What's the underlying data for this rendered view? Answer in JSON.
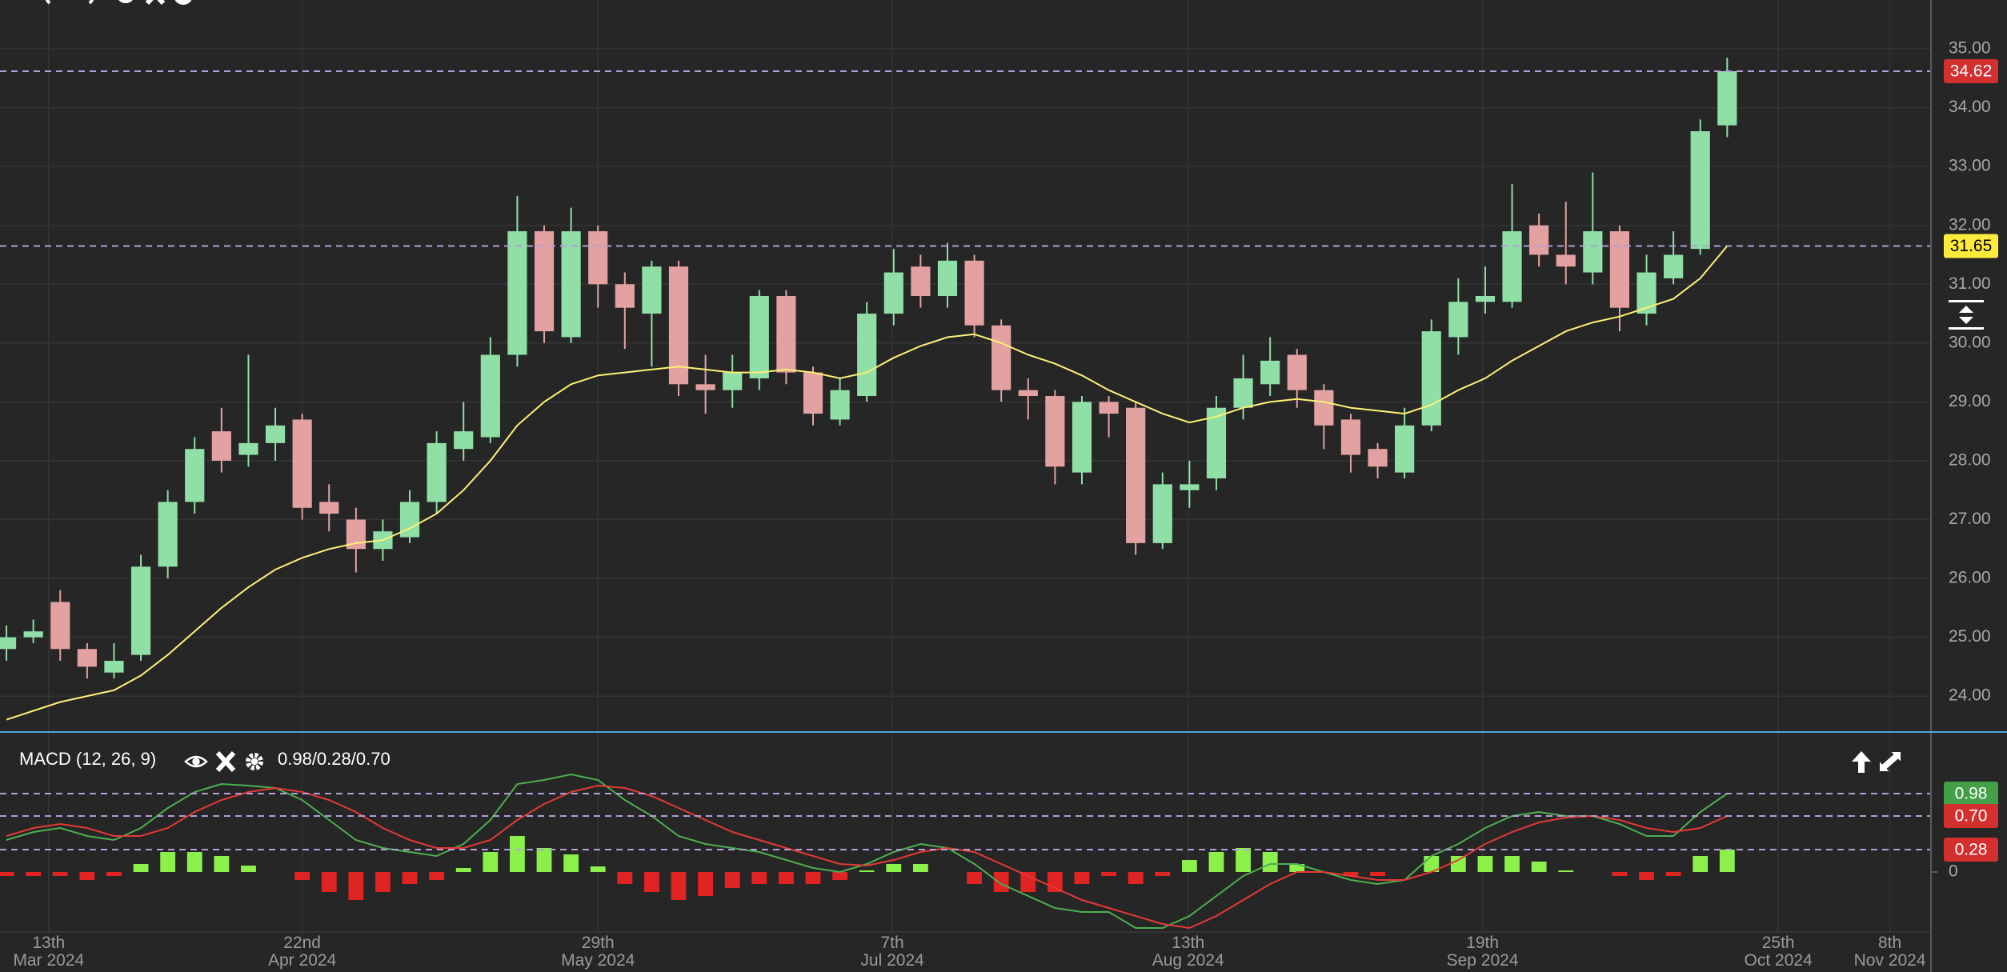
{
  "chart_data": [
    {
      "type": "candlestick",
      "xlim": [
        -0.24,
        71.58
      ],
      "xticks": [
        {
          "value": 1.57,
          "label": "13th\nMar 2024"
        },
        {
          "value": 11.0,
          "label": "22nd\nApr 2024"
        },
        {
          "value": 22.0,
          "label": "29th\nMay 2024"
        },
        {
          "value": 32.95,
          "label": "7th\nJul 2024"
        },
        {
          "value": 43.95,
          "label": "13th\nAug 2024"
        },
        {
          "value": 54.9,
          "label": "19th\nSep 2024"
        },
        {
          "value": 65.9,
          "label": "25th\nOct 2024"
        },
        {
          "value": 70.05,
          "label": "8th\nNov 2024"
        }
      ],
      "ylim": [
        23.39,
        35.83
      ],
      "yticks": [
        {
          "value": 24,
          "label": "24.00"
        },
        {
          "value": 25,
          "label": "25.00"
        },
        {
          "value": 26,
          "label": "26.00"
        },
        {
          "value": 27,
          "label": "27.00"
        },
        {
          "value": 28,
          "label": "28.00"
        },
        {
          "value": 29,
          "label": "29.00"
        },
        {
          "value": 30,
          "label": "30.00"
        },
        {
          "value": 31,
          "label": "31.00"
        },
        {
          "value": 32,
          "label": "32.00"
        },
        {
          "value": 33,
          "label": "33.00"
        },
        {
          "value": 34,
          "label": "34.00"
        },
        {
          "value": 35,
          "label": "35.00"
        }
      ],
      "grid": true,
      "up_color": "#8fdfa6",
      "down_color": "#e3a1a1",
      "last_color": "#d32f2f",
      "open": [
        24.8,
        25.0,
        25.6,
        24.8,
        24.4,
        24.7,
        26.2,
        27.3,
        28.5,
        28.1,
        28.3,
        28.7,
        27.3,
        27.0,
        26.5,
        26.7,
        27.3,
        28.2,
        28.4,
        29.8,
        31.9,
        30.1,
        31.9,
        31.0,
        30.5,
        31.3,
        29.3,
        29.2,
        29.4,
        30.8,
        29.5,
        28.7,
        29.1,
        30.5,
        31.3,
        30.8,
        31.4,
        30.3,
        29.2,
        29.1,
        27.8,
        29.0,
        28.9,
        26.6,
        27.5,
        27.7,
        28.9,
        29.3,
        29.8,
        29.2,
        28.7,
        28.2,
        27.8,
        28.6,
        30.1,
        30.7,
        30.7,
        32.0,
        31.5,
        31.2,
        31.9,
        30.5,
        31.1,
        31.6,
        33.7
      ],
      "high": [
        25.2,
        25.3,
        25.8,
        24.9,
        24.9,
        26.4,
        27.5,
        28.4,
        28.9,
        29.8,
        28.9,
        28.8,
        27.6,
        27.2,
        27.0,
        27.5,
        28.5,
        29.0,
        30.1,
        32.5,
        32.0,
        32.3,
        32.0,
        31.2,
        31.4,
        31.4,
        29.8,
        29.8,
        30.9,
        30.9,
        29.6,
        29.4,
        30.7,
        31.6,
        31.5,
        31.7,
        31.5,
        30.4,
        29.4,
        29.2,
        29.1,
        29.1,
        29.0,
        27.8,
        28.0,
        29.1,
        29.8,
        30.1,
        29.9,
        29.3,
        28.8,
        28.3,
        28.9,
        30.4,
        31.1,
        31.3,
        32.7,
        32.2,
        32.4,
        32.9,
        32.0,
        31.5,
        31.9,
        33.8,
        34.85
      ],
      "low": [
        24.6,
        24.9,
        24.6,
        24.3,
        24.3,
        24.6,
        26.0,
        27.1,
        27.8,
        27.9,
        28.0,
        27.0,
        26.8,
        26.1,
        26.3,
        26.6,
        27.1,
        28.0,
        28.3,
        29.6,
        30.0,
        30.0,
        30.6,
        29.9,
        29.6,
        29.1,
        28.8,
        28.9,
        29.2,
        29.3,
        28.6,
        28.6,
        29.0,
        30.3,
        30.6,
        30.6,
        30.1,
        29.0,
        28.7,
        27.6,
        27.6,
        28.4,
        26.4,
        26.5,
        27.2,
        27.5,
        28.7,
        29.1,
        28.9,
        28.2,
        27.8,
        27.7,
        27.7,
        28.5,
        29.8,
        30.5,
        30.6,
        31.3,
        31.0,
        31.0,
        30.2,
        30.3,
        31.0,
        31.5,
        33.5
      ],
      "close": [
        25.0,
        25.1,
        24.8,
        24.5,
        24.6,
        26.2,
        27.3,
        28.2,
        28.0,
        28.3,
        28.6,
        27.2,
        27.1,
        26.5,
        26.8,
        27.3,
        28.3,
        28.5,
        29.8,
        31.9,
        30.2,
        31.9,
        31.0,
        30.6,
        31.3,
        29.3,
        29.2,
        29.5,
        30.8,
        29.5,
        28.8,
        29.2,
        30.5,
        31.2,
        30.8,
        31.4,
        30.3,
        29.2,
        29.1,
        27.9,
        29.0,
        28.8,
        26.6,
        27.6,
        27.6,
        28.9,
        29.4,
        29.7,
        29.2,
        28.6,
        28.1,
        27.9,
        28.6,
        30.2,
        30.7,
        30.8,
        31.9,
        31.5,
        31.3,
        31.9,
        30.6,
        31.2,
        31.5,
        33.6,
        34.62
      ],
      "overlays": [
        {
          "color": "#fff176",
          "marker_color": "#ffeb3b",
          "values": [
            23.6,
            23.75,
            23.9,
            24.0,
            24.1,
            24.35,
            24.7,
            25.1,
            25.5,
            25.85,
            26.15,
            26.35,
            26.5,
            26.6,
            26.65,
            26.85,
            27.1,
            27.5,
            28.0,
            28.6,
            29.0,
            29.3,
            29.45,
            29.5,
            29.55,
            29.6,
            29.55,
            29.5,
            29.5,
            29.55,
            29.5,
            29.4,
            29.5,
            29.75,
            29.95,
            30.1,
            30.15,
            30.0,
            29.8,
            29.65,
            29.45,
            29.2,
            29.0,
            28.8,
            28.65,
            28.75,
            28.9,
            29.0,
            29.05,
            29.0,
            28.9,
            28.85,
            28.8,
            28.95,
            29.2,
            29.4,
            29.7,
            29.95,
            30.2,
            30.35,
            30.45,
            30.6,
            30.75,
            31.1,
            31.65
          ]
        }
      ]
    },
    {
      "type": "macd",
      "title": "MACD (12, 26, 9)",
      "subtitle": "0.98/0.28/0.70",
      "xlim": [
        -0.24,
        71.58
      ],
      "ylim": [
        -0.75,
        1.75
      ],
      "yticks": [
        0
      ],
      "series": [
        {
          "color": "#4caf50",
          "marker_color": "#43a047",
          "values": [
            0.4,
            0.5,
            0.55,
            0.45,
            0.4,
            0.55,
            0.8,
            1.0,
            1.1,
            1.08,
            1.05,
            0.9,
            0.65,
            0.4,
            0.3,
            0.25,
            0.2,
            0.35,
            0.65,
            1.1,
            1.15,
            1.22,
            1.15,
            0.9,
            0.7,
            0.45,
            0.35,
            0.3,
            0.25,
            0.15,
            0.05,
            0.0,
            0.1,
            0.25,
            0.35,
            0.3,
            0.1,
            -0.15,
            -0.3,
            -0.45,
            -0.5,
            -0.5,
            -0.7,
            -0.7,
            -0.55,
            -0.3,
            -0.05,
            0.1,
            0.1,
            0.0,
            -0.1,
            -0.15,
            -0.1,
            0.2,
            0.35,
            0.55,
            0.7,
            0.75,
            0.7,
            0.7,
            0.6,
            0.45,
            0.45,
            0.75,
            0.98
          ]
        },
        {
          "color": "#e53935",
          "marker_color": "#d32f2f",
          "values": [
            0.45,
            0.55,
            0.6,
            0.55,
            0.45,
            0.45,
            0.55,
            0.75,
            0.9,
            1.0,
            1.05,
            1.0,
            0.9,
            0.75,
            0.55,
            0.4,
            0.3,
            0.3,
            0.4,
            0.65,
            0.85,
            1.0,
            1.08,
            1.05,
            0.95,
            0.8,
            0.65,
            0.5,
            0.4,
            0.3,
            0.2,
            0.1,
            0.08,
            0.15,
            0.25,
            0.3,
            0.25,
            0.1,
            -0.05,
            -0.2,
            -0.35,
            -0.45,
            -0.55,
            -0.65,
            -0.7,
            -0.55,
            -0.35,
            -0.15,
            0.0,
            0.0,
            -0.05,
            -0.1,
            -0.1,
            0.0,
            0.15,
            0.35,
            0.5,
            0.62,
            0.68,
            0.7,
            0.65,
            0.55,
            0.5,
            0.55,
            0.7
          ],
          "value_labels": [
            null,
            null,
            null,
            null,
            null,
            null,
            null,
            null,
            null,
            null,
            null,
            null,
            null,
            null,
            null,
            null,
            null,
            null,
            null,
            null,
            null,
            null,
            null,
            null,
            null,
            null,
            null,
            null,
            null,
            null,
            null,
            null,
            null,
            null,
            null,
            null,
            null,
            null,
            null,
            null,
            null,
            null,
            null,
            null,
            null,
            null,
            null,
            null,
            null,
            null,
            null,
            null,
            null,
            null,
            null,
            null,
            null,
            null,
            null,
            null,
            null,
            null,
            null,
            null,
            "0.70"
          ]
        }
      ],
      "histogram": {
        "up_color": "#8cf04b",
        "down_color": "#e02424",
        "marker_color": "#d32f2f",
        "values": [
          -0.05,
          -0.05,
          -0.05,
          -0.1,
          -0.05,
          0.1,
          0.25,
          0.25,
          0.2,
          0.08,
          0.0,
          -0.1,
          -0.25,
          -0.35,
          -0.25,
          -0.15,
          -0.1,
          0.05,
          0.25,
          0.45,
          0.3,
          0.22,
          0.07,
          -0.15,
          -0.25,
          -0.35,
          -0.3,
          -0.2,
          -0.15,
          -0.15,
          -0.15,
          -0.1,
          0.02,
          0.1,
          0.1,
          0.0,
          -0.15,
          -0.25,
          -0.25,
          -0.25,
          -0.15,
          -0.05,
          -0.15,
          -0.05,
          0.15,
          0.25,
          0.3,
          0.25,
          0.1,
          0.0,
          -0.05,
          -0.05,
          0.0,
          0.2,
          0.2,
          0.2,
          0.2,
          0.13,
          0.02,
          0.0,
          -0.05,
          -0.1,
          -0.05,
          0.2,
          0.28
        ]
      }
    }
  ]
}
